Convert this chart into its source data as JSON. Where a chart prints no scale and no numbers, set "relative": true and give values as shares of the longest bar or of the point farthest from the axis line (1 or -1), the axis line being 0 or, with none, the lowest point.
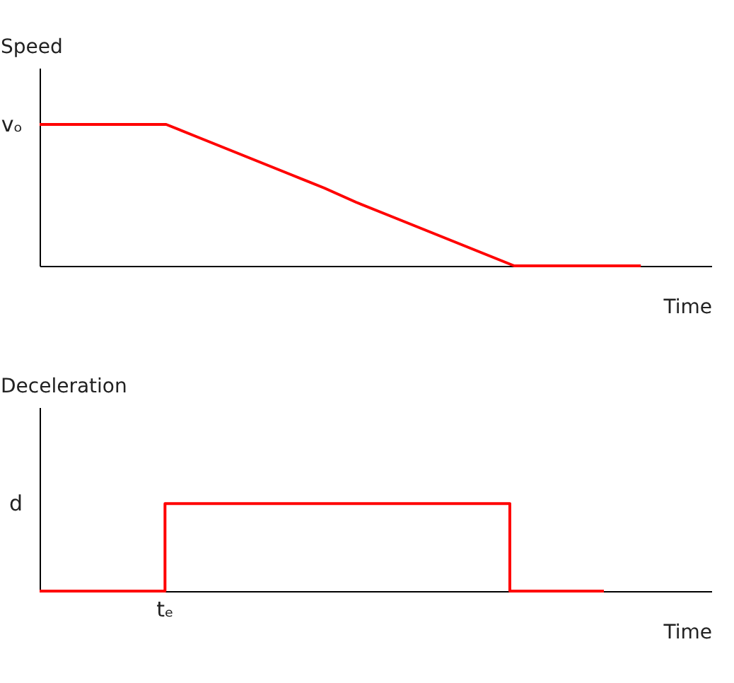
{
  "chart_data": [
    {
      "type": "line",
      "relative": true,
      "ylabel": "Speed",
      "xlabel": "Time",
      "categories": [
        null,
        null,
        null,
        null,
        null,
        null,
        null,
        null,
        null,
        null,
        null,
        null,
        null,
        null,
        null,
        null,
        null,
        null,
        null,
        null
      ],
      "series": [
        {
          "color": "#ff0000",
          "values": [
            1,
            1,
            1,
            1,
            1,
            0.91,
            0.82,
            0.73,
            0.64,
            0.55,
            0.45,
            0.36,
            0.27,
            0.18,
            0.09,
            0,
            0,
            0,
            0,
            0
          ]
        }
      ],
      "annotations": [
        "vₒ"
      ]
    },
    {
      "type": "step",
      "relative": true,
      "ylabel": "Deceleration",
      "xlabel": "Time",
      "categories": [
        null,
        null,
        null,
        null,
        null,
        null,
        null,
        null,
        null,
        null,
        null,
        null,
        null,
        null,
        null,
        null,
        null,
        null,
        null
      ],
      "series": [
        {
          "color": "#ff0000",
          "values": [
            0,
            0,
            0,
            0,
            1,
            1,
            1,
            1,
            1,
            1,
            1,
            1,
            1,
            1,
            1,
            0,
            0,
            0,
            0
          ]
        }
      ],
      "annotations": [
        "d",
        "tₑ"
      ]
    }
  ]
}
